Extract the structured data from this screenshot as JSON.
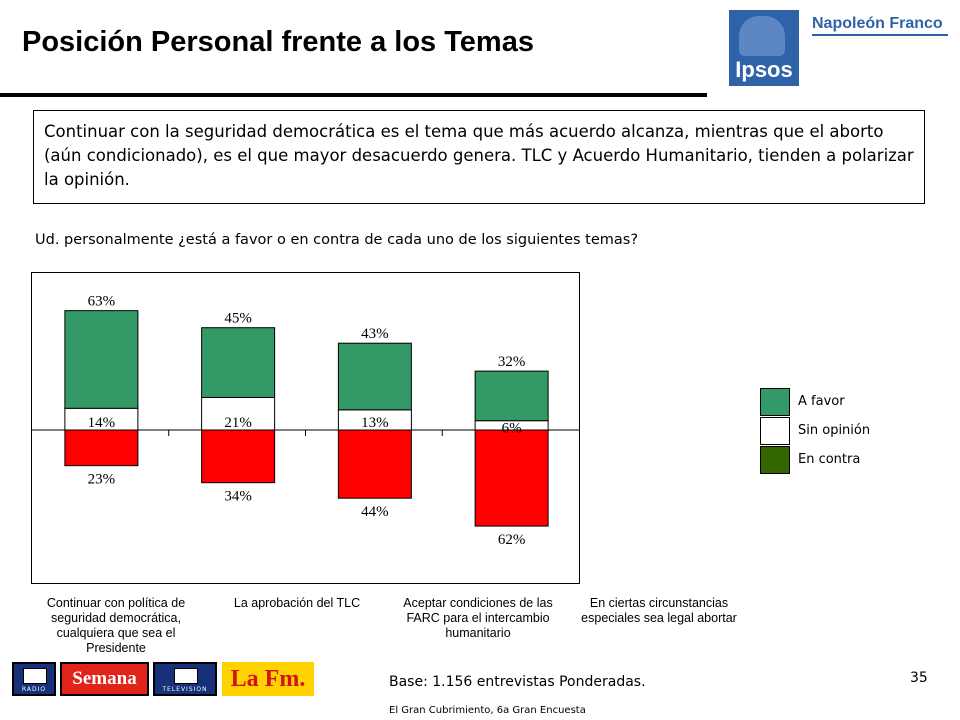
{
  "header": {
    "title": "Posición Personal frente a los Temas",
    "logo_ipsos": "Ipsos",
    "logo_partner": "Napoleón Franco"
  },
  "summary": "Continuar con la seguridad democrática es el tema que más acuerdo alcanza, mientras que el aborto (aún condicionado), es el que mayor desacuerdo genera. TLC y Acuerdo Humanitario, tienden a polarizar la opinión.",
  "question": "Ud. personalmente ¿está a favor o en contra de cada uno de los siguientes temas?",
  "colors": {
    "favor": "#339966",
    "sin_opinion": "#ffffff",
    "contra": "#ff0000",
    "legend_contra": "#336600"
  },
  "chart_data": {
    "type": "bar",
    "stacked": "diverging",
    "categories": [
      "Continuar con política de seguridad democrática, cualquiera que sea el Presidente",
      "La aprobación del TLC",
      "Aceptar condiciones de las FARC para el intercambio humanitario",
      "En ciertas circunstancias especiales sea legal abortar"
    ],
    "series": [
      {
        "name": "A favor",
        "values": [
          63,
          45,
          43,
          32
        ],
        "labels": [
          "63%",
          "45%",
          "43%",
          "32%"
        ]
      },
      {
        "name": "Sin opinión",
        "values": [
          14,
          21,
          13,
          6
        ],
        "labels": [
          "14%",
          "21%",
          "13%",
          "6%"
        ]
      },
      {
        "name": "En contra",
        "values": [
          23,
          34,
          44,
          62
        ],
        "labels": [
          "23%",
          "34%",
          "44%",
          "62%"
        ]
      }
    ],
    "legend_position": "right",
    "grid": false
  },
  "legend": [
    {
      "label": "A favor",
      "color": "#339966"
    },
    {
      "label": "Sin opinión",
      "color": "#ffffff"
    },
    {
      "label": "En contra",
      "color": "#336600"
    }
  ],
  "footer": {
    "page_number": "35",
    "base": "Base: 1.156 entrevistas Ponderadas.",
    "source": "El Gran Cubrimiento, 6a Gran Encuesta",
    "logos": [
      "RADIO",
      "Semana",
      "TELEVISION",
      "La Fm."
    ]
  }
}
